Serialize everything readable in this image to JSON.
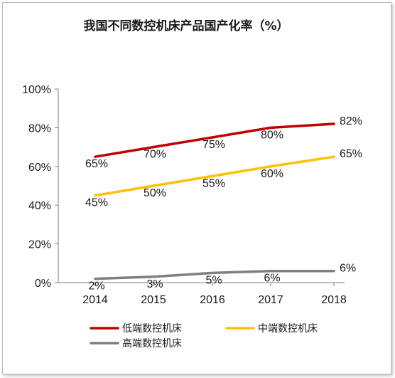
{
  "chart_data": {
    "type": "line",
    "title": "我国不同数控机床产品国产化率（%）",
    "xlabel": "",
    "ylabel": "",
    "categories": [
      "2014",
      "2015",
      "2016",
      "2017",
      "2018"
    ],
    "ylim": [
      0,
      100
    ],
    "yticks": [
      "0%",
      "20%",
      "40%",
      "60%",
      "80%",
      "100%"
    ],
    "grid": false,
    "legend_position": "bottom",
    "series": [
      {
        "name": "低端数控机床",
        "color": "#c00000",
        "values": [
          65,
          70,
          75,
          80,
          82
        ],
        "labels": [
          "65%",
          "70%",
          "75%",
          "80%",
          "82%"
        ]
      },
      {
        "name": "中端数控机床",
        "color": "#ffc000",
        "values": [
          45,
          50,
          55,
          60,
          65
        ],
        "labels": [
          "45%",
          "50%",
          "55%",
          "60%",
          "65%"
        ]
      },
      {
        "name": "高端数控机床",
        "color": "#7f7f7f",
        "values": [
          2,
          3,
          5,
          6,
          6
        ],
        "labels": [
          "2%",
          "3%",
          "5%",
          "6%",
          "6%"
        ]
      }
    ]
  }
}
